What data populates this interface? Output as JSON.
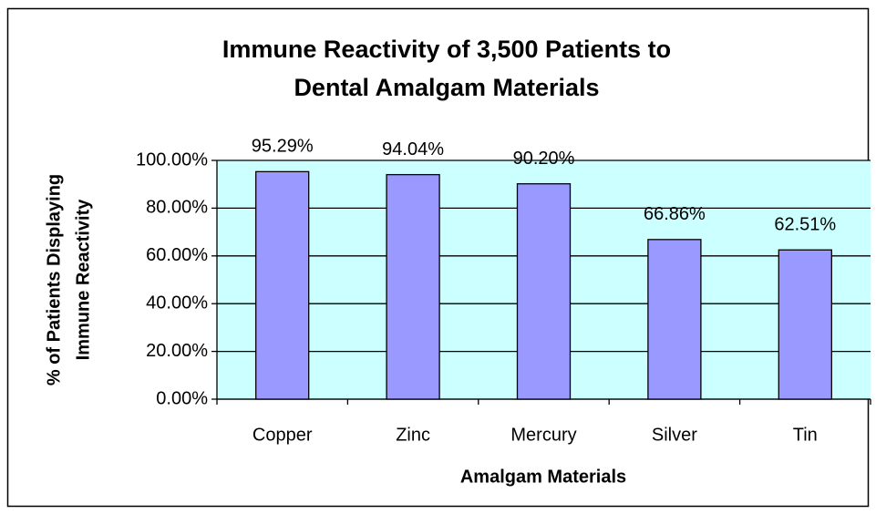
{
  "chart_data": {
    "type": "bar",
    "title": [
      "Immune Reactivity of 3,500 Patients to",
      "Dental Amalgam Materials"
    ],
    "y_label": [
      "% of Patients Displaying",
      "Immune Reactivity"
    ],
    "x_label": "Amalgam Materials",
    "categories": [
      "Copper",
      "Zinc",
      "Mercury",
      "Silver",
      "Tin"
    ],
    "values": [
      95.29,
      94.04,
      90.2,
      66.86,
      62.51
    ],
    "value_labels": [
      "95.29%",
      "94.04%",
      "90.20%",
      "66.86%",
      "62.51%"
    ],
    "color": "#9999ff",
    "ylim": [
      0,
      100
    ],
    "yticks": [
      {
        "value": 0,
        "label": "0.00%"
      },
      {
        "value": 20,
        "label": "20.00%"
      },
      {
        "value": 40,
        "label": "40.00%"
      },
      {
        "value": 60,
        "label": "60.00%"
      },
      {
        "value": 80,
        "label": "80.00%"
      },
      {
        "value": 100,
        "label": "100.00%"
      }
    ],
    "grid": true
  }
}
